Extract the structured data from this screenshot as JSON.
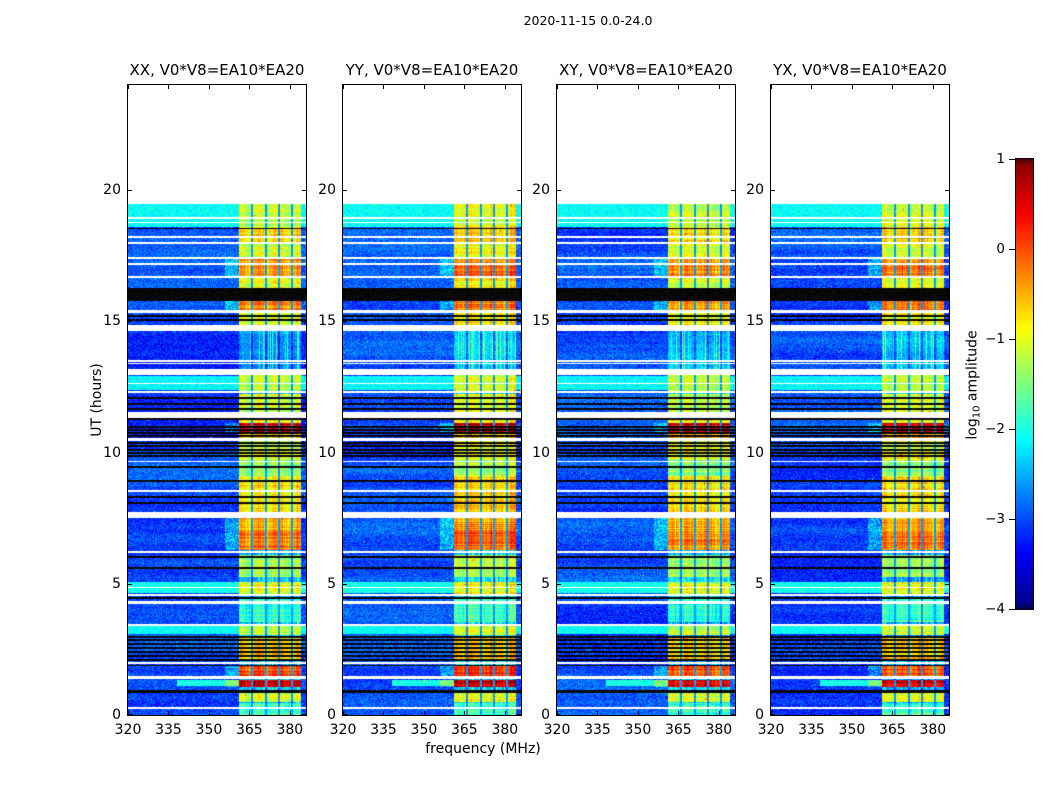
{
  "figure": {
    "title": "2020-11-15 0.0-24.0",
    "background_color": "#ffffff",
    "frame_color": "#000000"
  },
  "chart_data": {
    "type": "heatmap",
    "title": "2020-11-15 0.0-24.0",
    "xlabel": "frequency (MHz)",
    "ylabel": "UT (hours)",
    "x_range": [
      320,
      386
    ],
    "y_range": [
      0,
      24
    ],
    "x_ticks": [
      320,
      335,
      350,
      365,
      380
    ],
    "y_ticks": [
      0,
      5,
      10,
      15,
      20
    ],
    "colormap": "jet",
    "panels": [
      {
        "title": "XX, V0*V8=EA10*EA20",
        "seed": 11,
        "gain": 0.0
      },
      {
        "title": "YY, V0*V8=EA10*EA20",
        "seed": 23,
        "gain": 0.15
      },
      {
        "title": "XY, V0*V8=EA10*EA20",
        "seed": 37,
        "gain": -0.05
      },
      {
        "title": "YX, V0*V8=EA10*EA20",
        "seed": 51,
        "gain": 0.05
      }
    ],
    "data_extent_hours": [
      0,
      19.46
    ],
    "background_level": -3.05,
    "noise_amplitude": 0.7,
    "quiet_band_boost": 0.55,
    "rfi_band_mhz": [
      361,
      384
    ],
    "rfi_column_gaps_mhz": [
      [
        365.7,
        366.5
      ],
      [
        370.7,
        371.5
      ],
      [
        375.7,
        376.5
      ],
      [
        380.6,
        381.2
      ]
    ],
    "cyan_bands_hours": [
      [
        18.6,
        19.46,
        -2.1
      ],
      [
        12.38,
        12.93,
        -2.15
      ],
      [
        4.65,
        5.05,
        -2.05
      ],
      [
        3.08,
        3.44,
        -2.1
      ]
    ],
    "white_gaps_hours": [
      [
        18.9,
        18.98
      ],
      [
        18.73,
        18.79
      ],
      [
        18.17,
        18.25
      ],
      [
        17.94,
        18.02
      ],
      [
        17.37,
        17.45
      ],
      [
        17.13,
        17.21
      ],
      [
        16.66,
        16.72
      ],
      [
        15.31,
        15.41
      ],
      [
        14.63,
        14.85
      ],
      [
        13.46,
        13.52
      ],
      [
        13.36,
        13.42
      ],
      [
        12.95,
        13.17
      ],
      [
        12.6,
        12.66
      ],
      [
        12.25,
        12.36
      ],
      [
        11.33,
        11.55
      ],
      [
        10.44,
        10.56
      ],
      [
        9.63,
        9.69
      ],
      [
        8.5,
        8.58
      ],
      [
        7.52,
        7.72
      ],
      [
        6.17,
        6.26
      ],
      [
        4.82,
        4.88
      ],
      [
        4.55,
        4.61
      ],
      [
        4.22,
        4.33
      ],
      [
        3.4,
        3.46
      ],
      [
        1.93,
        2.01
      ],
      [
        1.37,
        1.47
      ],
      [
        0.23,
        0.31
      ]
    ],
    "black_rows_hours": [
      [
        18.5,
        18.56
      ],
      [
        15.77,
        16.27
      ],
      [
        15.17,
        15.23
      ],
      [
        15.02,
        15.08
      ],
      [
        12.05,
        12.11
      ],
      [
        11.82,
        11.88
      ],
      [
        11.63,
        11.69
      ],
      [
        11.25,
        11.31
      ],
      [
        10.94,
        11.0
      ],
      [
        10.83,
        10.89
      ],
      [
        10.71,
        10.77
      ],
      [
        10.6,
        10.66
      ],
      [
        10.33,
        10.39
      ],
      [
        10.22,
        10.28
      ],
      [
        10.07,
        10.13
      ],
      [
        9.95,
        10.01
      ],
      [
        9.84,
        9.9
      ],
      [
        9.42,
        9.48
      ],
      [
        8.88,
        8.94
      ],
      [
        8.27,
        8.33
      ],
      [
        8.05,
        8.11
      ],
      [
        5.99,
        6.06
      ],
      [
        5.57,
        5.63
      ],
      [
        4.43,
        4.49
      ],
      [
        2.94,
        3.0
      ],
      [
        2.83,
        2.89
      ],
      [
        2.67,
        2.73
      ],
      [
        2.52,
        2.58
      ],
      [
        2.37,
        2.43
      ],
      [
        2.22,
        2.28
      ],
      [
        2.07,
        2.13
      ],
      [
        1.86,
        1.92
      ],
      [
        0.84,
        0.96
      ]
    ],
    "rfi_segments": [
      [
        0.0,
        0.46,
        -1.9
      ],
      [
        0.5,
        0.9,
        -1.1
      ],
      [
        1.08,
        1.35,
        0.55
      ],
      [
        1.48,
        1.92,
        0.0
      ],
      [
        2.05,
        3.0,
        -0.7
      ],
      [
        3.05,
        3.45,
        -1.2
      ],
      [
        3.55,
        4.45,
        -1.9
      ],
      [
        4.6,
        5.05,
        -1.0
      ],
      [
        5.25,
        6.1,
        -1.35
      ],
      [
        6.28,
        7.0,
        -0.25
      ],
      [
        7.0,
        7.5,
        -0.5
      ],
      [
        7.72,
        9.1,
        -0.8
      ],
      [
        9.1,
        9.7,
        -1.45
      ],
      [
        9.7,
        10.44,
        -1.0
      ],
      [
        10.56,
        10.72,
        -0.55
      ],
      [
        10.72,
        11.12,
        0.6
      ],
      [
        11.12,
        11.32,
        -0.9
      ],
      [
        11.56,
        12.24,
        -1.1
      ],
      [
        12.36,
        12.94,
        -1.2
      ],
      [
        14.86,
        15.3,
        -0.95
      ],
      [
        15.42,
        15.76,
        -0.35
      ],
      [
        16.28,
        16.7,
        -1.0
      ],
      [
        16.72,
        17.2,
        -0.3
      ],
      [
        17.21,
        17.46,
        -0.45
      ],
      [
        17.46,
        17.95,
        -1.1
      ],
      [
        18.02,
        18.6,
        -0.7
      ],
      [
        18.6,
        19.46,
        -1.15
      ]
    ],
    "partial_streaks": [
      {
        "hours": [
          1.12,
          1.33
        ],
        "mhz": [
          338,
          361
        ],
        "level": -2.0
      }
    ],
    "colorbar": {
      "label_pre": "log",
      "label_sub": "10",
      "label_post": " amplitude",
      "range": [
        -4,
        1
      ],
      "tick_values": [
        1,
        0,
        -1,
        -2,
        -3,
        -4
      ],
      "tick_labels": [
        "1",
        "0",
        "−1",
        "−2",
        "−3",
        "−4"
      ]
    }
  }
}
